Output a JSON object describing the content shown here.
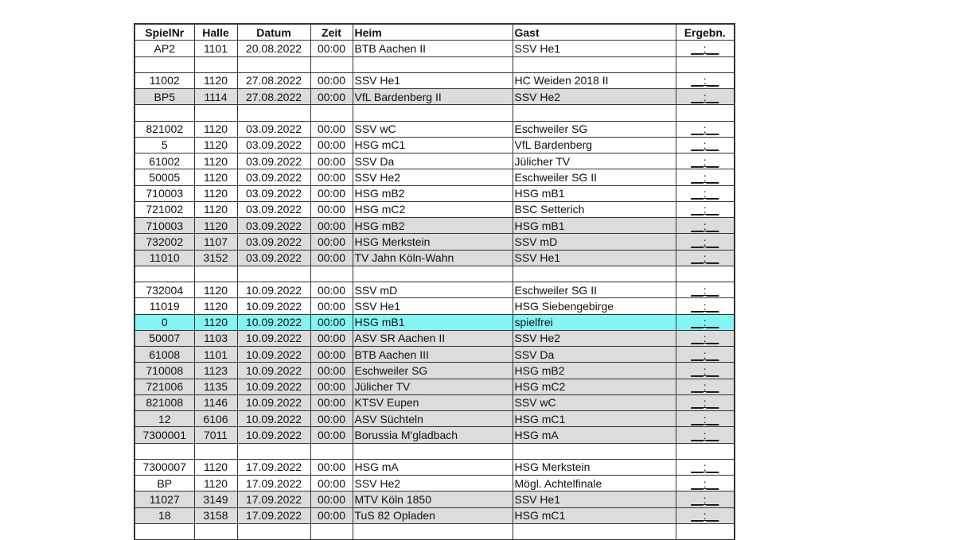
{
  "colors": {
    "shaded": "#dcdcdc",
    "highlight": "#84f5f5"
  },
  "headers": [
    "SpielNr",
    "Halle",
    "Datum",
    "Zeit",
    "Heim",
    "Gast",
    "Ergebn."
  ],
  "rows": [
    {
      "nr": "AP2",
      "halle": "1101",
      "datum": "20.08.2022",
      "zeit": "00:00",
      "heim": "BTB Aachen II",
      "gast": "SSV He1",
      "erg": "__:__",
      "style": ""
    },
    {
      "blank": true
    },
    {
      "nr": "11002",
      "halle": "1120",
      "datum": "27.08.2022",
      "zeit": "00:00",
      "heim": "SSV He1",
      "gast": "HC Weiden 2018 II",
      "erg": "__:__",
      "style": ""
    },
    {
      "nr": "BP5",
      "halle": "1114",
      "datum": "27.08.2022",
      "zeit": "00:00",
      "heim": "VfL Bardenberg II",
      "gast": "SSV He2",
      "erg": "__:__",
      "style": "shade"
    },
    {
      "blank": true
    },
    {
      "nr": "821002",
      "halle": "1120",
      "datum": "03.09.2022",
      "zeit": "00:00",
      "heim": "SSV wC",
      "gast": "Eschweiler SG",
      "erg": "__:__",
      "style": ""
    },
    {
      "nr": "5",
      "halle": "1120",
      "datum": "03.09.2022",
      "zeit": "00:00",
      "heim": "HSG mC1",
      "gast": "VfL Bardenberg",
      "erg": "__:__",
      "style": ""
    },
    {
      "nr": "61002",
      "halle": "1120",
      "datum": "03.09.2022",
      "zeit": "00:00",
      "heim": "SSV Da",
      "gast": "Jülicher TV",
      "erg": "__:__",
      "style": ""
    },
    {
      "nr": "50005",
      "halle": "1120",
      "datum": "03.09.2022",
      "zeit": "00:00",
      "heim": "SSV He2",
      "gast": "Eschweiler SG II",
      "erg": "__:__",
      "style": ""
    },
    {
      "nr": "710003",
      "halle": "1120",
      "datum": "03.09.2022",
      "zeit": "00:00",
      "heim": "HSG mB2",
      "gast": "HSG mB1",
      "erg": "__:__",
      "style": ""
    },
    {
      "nr": "721002",
      "halle": "1120",
      "datum": "03.09.2022",
      "zeit": "00:00",
      "heim": "HSG mC2",
      "gast": "BSC Setterich",
      "erg": "__:__",
      "style": ""
    },
    {
      "nr": "710003",
      "halle": "1120",
      "datum": "03.09.2022",
      "zeit": "00:00",
      "heim": "HSG mB2",
      "gast": "HSG mB1",
      "erg": "__:__",
      "style": "shade"
    },
    {
      "nr": "732002",
      "halle": "1107",
      "datum": "03.09.2022",
      "zeit": "00:00",
      "heim": "HSG Merkstein",
      "gast": "SSV mD",
      "erg": "__:__",
      "style": "shade"
    },
    {
      "nr": "11010",
      "halle": "3152",
      "datum": "03.09.2022",
      "zeit": "00:00",
      "heim": "TV Jahn Köln-Wahn",
      "gast": "SSV He1",
      "erg": "__:__",
      "style": "shade"
    },
    {
      "blank": true
    },
    {
      "nr": "732004",
      "halle": "1120",
      "datum": "10.09.2022",
      "zeit": "00:00",
      "heim": "SSV mD",
      "gast": "Eschweiler SG II",
      "erg": "__:__",
      "style": ""
    },
    {
      "nr": "11019",
      "halle": "1120",
      "datum": "10.09.2022",
      "zeit": "00:00",
      "heim": "SSV He1",
      "gast": "HSG Siebengebirge",
      "erg": "__:__",
      "style": ""
    },
    {
      "nr": "0",
      "halle": "1120",
      "datum": "10.09.2022",
      "zeit": "00:00",
      "heim": "HSG mB1",
      "gast": "spielfrei",
      "erg": "__:__",
      "style": "hl"
    },
    {
      "nr": "50007",
      "halle": "1103",
      "datum": "10.09.2022",
      "zeit": "00:00",
      "heim": "ASV SR Aachen II",
      "gast": "SSV He2",
      "erg": "__:__",
      "style": "shade"
    },
    {
      "nr": "61008",
      "halle": "1101",
      "datum": "10.09.2022",
      "zeit": "00:00",
      "heim": "BTB Aachen III",
      "gast": "SSV Da",
      "erg": "__:__",
      "style": "shade"
    },
    {
      "nr": "710008",
      "halle": "1123",
      "datum": "10.09.2022",
      "zeit": "00:00",
      "heim": "Eschweiler SG",
      "gast": "HSG mB2",
      "erg": "__:__",
      "style": "shade"
    },
    {
      "nr": "721006",
      "halle": "1135",
      "datum": "10.09.2022",
      "zeit": "00:00",
      "heim": "Jülicher TV",
      "gast": "HSG mC2",
      "erg": "__:__",
      "style": "shade"
    },
    {
      "nr": "821008",
      "halle": "1146",
      "datum": "10.09.2022",
      "zeit": "00:00",
      "heim": "KTSV Eupen",
      "gast": "SSV wC",
      "erg": "__:__",
      "style": "shade"
    },
    {
      "nr": "12",
      "halle": "6106",
      "datum": "10.09.2022",
      "zeit": "00:00",
      "heim": "ASV Süchteln",
      "gast": "HSG mC1",
      "erg": "__:__",
      "style": "shade"
    },
    {
      "nr": "7300001",
      "halle": "7011",
      "datum": "10.09.2022",
      "zeit": "00:00",
      "heim": "Borussia M'gladbach",
      "gast": "HSG mA",
      "erg": "__:__",
      "style": "shade"
    },
    {
      "blank": true
    },
    {
      "nr": "7300007",
      "halle": "1120",
      "datum": "17.09.2022",
      "zeit": "00:00",
      "heim": "HSG mA",
      "gast": "HSG Merkstein",
      "erg": "__:__",
      "style": ""
    },
    {
      "nr": "BP",
      "halle": "1120",
      "datum": "17.09.2022",
      "zeit": "00:00",
      "heim": "SSV He2",
      "gast": "Mögl. Achtelfinale",
      "erg": "__:__",
      "style": ""
    },
    {
      "nr": "11027",
      "halle": "3149",
      "datum": "17.09.2022",
      "zeit": "00:00",
      "heim": "MTV Köln 1850",
      "gast": "SSV He1",
      "erg": "__:__",
      "style": "shade"
    },
    {
      "nr": "18",
      "halle": "3158",
      "datum": "17.09.2022",
      "zeit": "00:00",
      "heim": "TuS 82 Opladen",
      "gast": "HSG mC1",
      "erg": "__:__",
      "style": "shade"
    },
    {
      "blank": true
    }
  ]
}
